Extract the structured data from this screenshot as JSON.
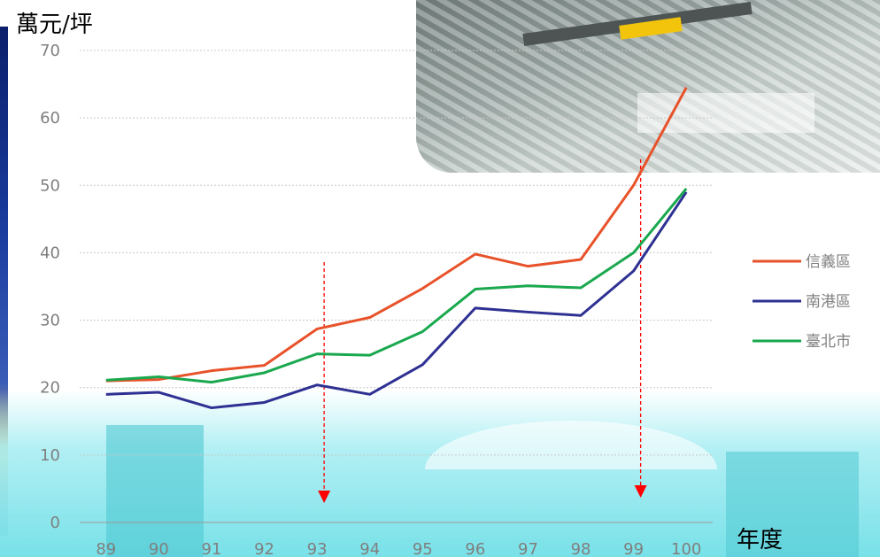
{
  "chart_data": {
    "type": "line",
    "title": "",
    "ylabel": "萬元/坪",
    "xlabel": "年度",
    "ylim": [
      0,
      70
    ],
    "yticks": [
      0,
      10,
      20,
      30,
      40,
      50,
      60,
      70
    ],
    "categories": [
      "89",
      "90",
      "91",
      "92",
      "93",
      "94",
      "95",
      "96",
      "97",
      "98",
      "99",
      "100"
    ],
    "series": [
      {
        "name": "信義區",
        "color": "#e8522a",
        "values": [
          21.0,
          21.2,
          22.5,
          23.3,
          28.7,
          30.4,
          34.7,
          39.8,
          38.0,
          39.0,
          50.0,
          64.5
        ]
      },
      {
        "name": "南港區",
        "color": "#2e3192",
        "values": [
          19.0,
          19.3,
          17.0,
          17.8,
          20.4,
          19.0,
          23.4,
          31.8,
          31.2,
          30.7,
          37.3,
          49.0
        ]
      },
      {
        "name": "臺北市",
        "color": "#1aa84e",
        "values": [
          21.1,
          21.6,
          20.8,
          22.2,
          25.0,
          24.8,
          28.3,
          34.6,
          35.1,
          34.8,
          40.0,
          49.5
        ]
      }
    ],
    "annotations": [
      {
        "type": "dashed-arrow-down",
        "x": "93",
        "color": "#ff0000"
      },
      {
        "type": "dashed-arrow-down",
        "x": "99",
        "color": "#ff0000"
      }
    ],
    "grid": true,
    "legend": "right"
  }
}
